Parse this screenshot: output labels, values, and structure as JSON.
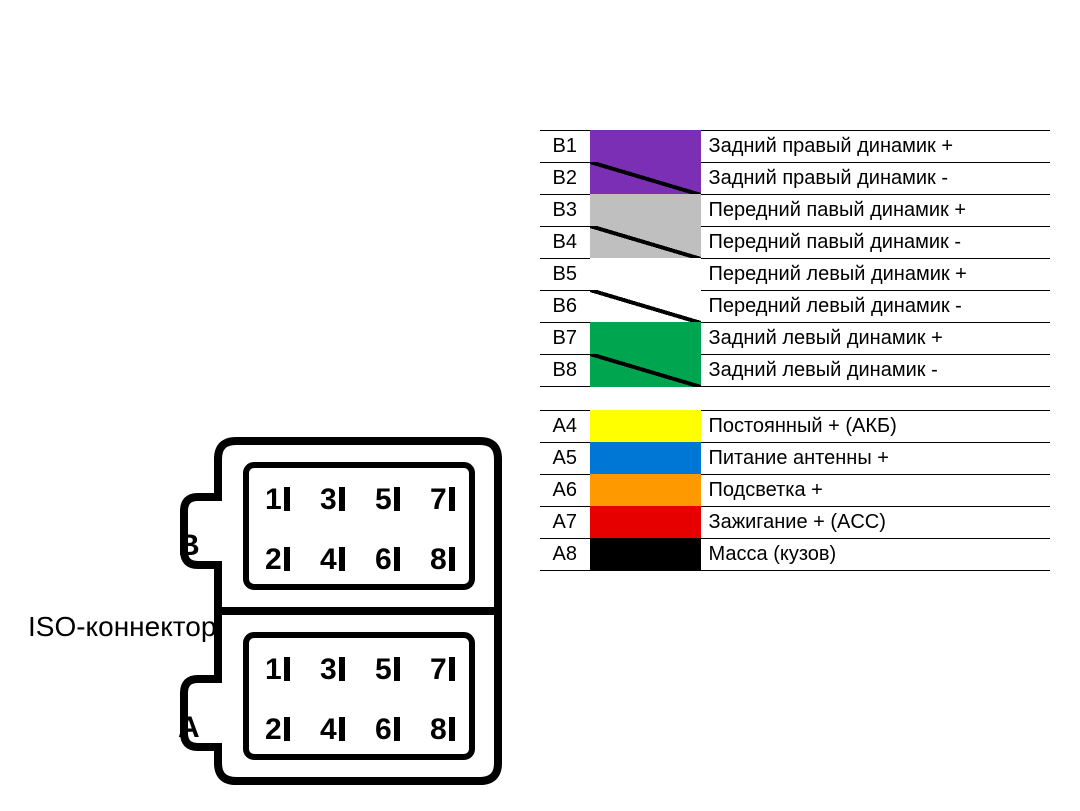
{
  "title": "ISO-коннектор",
  "blocks": [
    {
      "id": "B",
      "label": "B"
    },
    {
      "id": "A",
      "label": "A"
    }
  ],
  "pin_numbers": [
    "1",
    "2",
    "3",
    "4",
    "5",
    "6",
    "7",
    "8"
  ],
  "legend_b": [
    {
      "code": "B1",
      "color": "#7b2fb5",
      "stripe": false,
      "desc": "Задний правый динамик +"
    },
    {
      "code": "B2",
      "color": "#7b2fb5",
      "stripe": true,
      "desc": "Задний правый динамик -"
    },
    {
      "code": "B3",
      "color": "#bfbfbf",
      "stripe": false,
      "desc": "Передний павый динамик +"
    },
    {
      "code": "B4",
      "color": "#bfbfbf",
      "stripe": true,
      "desc": "Передний павый динамик -"
    },
    {
      "code": "B5",
      "color": "#ffffff",
      "stripe": false,
      "desc": "Передний левый динамик +"
    },
    {
      "code": "B6",
      "color": "#ffffff",
      "stripe": true,
      "desc": "Передний левый динамик -"
    },
    {
      "code": "B7",
      "color": "#00a64f",
      "stripe": false,
      "desc": "Задний левый динамик +"
    },
    {
      "code": "B8",
      "color": "#00a64f",
      "stripe": true,
      "desc": "Задний левый динамик -"
    }
  ],
  "legend_a": [
    {
      "code": "A4",
      "color": "#ffff00",
      "stripe": false,
      "desc": "Постоянный + (АКБ)"
    },
    {
      "code": "A5",
      "color": "#0077d4",
      "stripe": false,
      "desc": "Питание антенны +"
    },
    {
      "code": "A6",
      "color": "#ff9900",
      "stripe": false,
      "desc": "Подсветка +"
    },
    {
      "code": "A7",
      "color": "#e60000",
      "stripe": false,
      "desc": "Зажигание + (ACC)"
    },
    {
      "code": "A8",
      "color": "#000000",
      "stripe": false,
      "desc": "Масса (кузов)"
    }
  ],
  "style": {
    "stroke_color": "#000000",
    "stroke_width_outer": 8,
    "stroke_width_inner": 6,
    "pin_fontsize": 30,
    "label_fontsize": 28,
    "legend_fontsize": 20,
    "legend_row_height": 32,
    "background": "#ffffff"
  }
}
